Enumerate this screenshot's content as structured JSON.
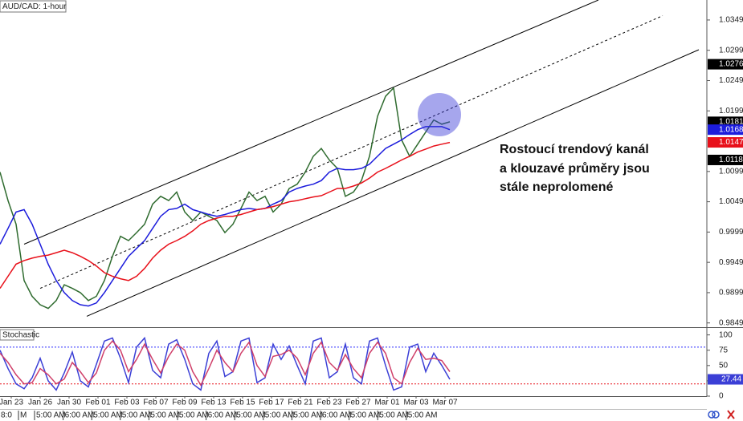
{
  "chart_data": [
    {
      "type": "line",
      "title": "AUD/CAD: 1-hour",
      "annotation": [
        "Rostoucí trendový kanál",
        "a klouzavé průměry jsou",
        "stále neprolomené"
      ],
      "x": [
        0,
        1,
        2,
        3,
        4,
        5,
        6,
        7,
        8,
        9,
        10,
        11,
        12,
        13,
        14,
        15,
        16,
        17,
        18,
        19,
        20,
        21,
        22,
        23,
        24,
        25,
        26,
        27,
        28,
        29,
        30,
        31,
        32,
        33,
        34,
        35,
        36,
        37,
        38,
        39,
        40,
        41,
        42,
        43,
        44,
        45,
        46,
        47,
        48,
        49,
        50,
        51,
        52,
        53,
        54,
        55,
        56
      ],
      "series": [
        {
          "color": "#2f6b2f",
          "values": [
            1.0098,
            1.0051,
            1.0012,
            0.9919,
            0.9893,
            0.9879,
            0.9873,
            0.9886,
            0.9912,
            0.9906,
            0.9899,
            0.9886,
            0.9893,
            0.9919,
            0.9959,
            0.9992,
            0.9985,
            0.9998,
            1.0012,
            1.0045,
            1.0058,
            1.0051,
            1.0065,
            1.0032,
            1.0018,
            1.0032,
            1.0025,
            1.0018,
            0.9998,
            1.0012,
            1.0038,
            1.0065,
            1.0051,
            1.0058,
            1.0032,
            1.0045,
            1.0071,
            1.0078,
            1.0098,
            1.0124,
            1.0137,
            1.0118,
            1.0104,
            1.0058,
            1.0065,
            1.0084,
            1.0124,
            1.019,
            1.0223,
            1.0237,
            1.0151,
            1.0124,
            1.0144,
            1.0164,
            1.0184,
            1.0177,
            1.0181
          ]
        },
        {
          "color": "#1c1cdc",
          "values": [
            0.9979,
            1.0005,
            1.0032,
            1.0036,
            1.0012,
            0.9979,
            0.9946,
            0.9919,
            0.9899,
            0.9886,
            0.9879,
            0.9877,
            0.9882,
            0.9899,
            0.9919,
            0.9939,
            0.9959,
            0.9972,
            0.9985,
            1.0005,
            1.0025,
            1.0036,
            1.0038,
            1.0045,
            1.0036,
            1.0032,
            1.0028,
            1.0025,
            1.0028,
            1.0032,
            1.0036,
            1.0038,
            1.0036,
            1.0038,
            1.0045,
            1.0051,
            1.0065,
            1.0071,
            1.0075,
            1.0078,
            1.0084,
            1.0098,
            1.0104,
            1.0102,
            1.0102,
            1.0104,
            1.0111,
            1.0124,
            1.0137,
            1.0144,
            1.0151,
            1.016,
            1.0168,
            1.0173,
            1.0173,
            1.0173,
            1.0168
          ]
        },
        {
          "color": "#e8101a",
          "values": [
            0.9906,
            0.9926,
            0.9946,
            0.9952,
            0.9956,
            0.9959,
            0.9961,
            0.9965,
            0.9969,
            0.9965,
            0.9959,
            0.9952,
            0.9943,
            0.9932,
            0.9926,
            0.9922,
            0.9919,
            0.9926,
            0.9939,
            0.9956,
            0.9969,
            0.9979,
            0.9985,
            0.9992,
            1.0001,
            1.0012,
            1.0018,
            1.0022,
            1.0025,
            1.0025,
            1.0028,
            1.0032,
            1.0036,
            1.0038,
            1.0041,
            1.0045,
            1.0049,
            1.0051,
            1.0054,
            1.0057,
            1.0059,
            1.0065,
            1.0071,
            1.0071,
            1.0075,
            1.008,
            1.0088,
            1.0098,
            1.0104,
            1.0111,
            1.0118,
            1.0124,
            1.0131,
            1.0136,
            1.0141,
            1.0144,
            1.0147
          ]
        }
      ],
      "trendlines": [
        {
          "x": [
            3,
            74.5
          ],
          "values": [
            0.9979,
            1.0382
          ],
          "color": "#000000"
        },
        {
          "x": [
            10.8,
            87
          ],
          "values": [
            0.986,
            1.03
          ],
          "color": "#000000"
        },
        {
          "x": [
            5,
            82.5
          ],
          "values": [
            0.9906,
            1.0356
          ],
          "color": "#000000",
          "dashed": true
        }
      ],
      "xlim": [
        0,
        88
      ],
      "ylim": [
        0.9842,
        1.0382
      ],
      "yticks": [
        0.9849,
        0.9899,
        0.9949,
        0.9999,
        1.0049,
        1.0099,
        1.0199,
        1.0249,
        1.0299,
        1.0349
      ],
      "price_labels": [
        {
          "value": 1.0276,
          "color": "#000000"
        },
        {
          "value": 1.0181,
          "color": "#000000"
        },
        {
          "value": 1.0168,
          "color": "#1c1cdc"
        },
        {
          "value": 1.0147,
          "color": "#e8101a"
        },
        {
          "value": 1.0118,
          "color": "#000000"
        }
      ]
    },
    {
      "type": "line",
      "title": "Stochastic",
      "x": [
        0,
        1,
        2,
        3,
        4,
        5,
        6,
        7,
        8,
        9,
        10,
        11,
        12,
        13,
        14,
        15,
        16,
        17,
        18,
        19,
        20,
        21,
        22,
        23,
        24,
        25,
        26,
        27,
        28,
        29,
        30,
        31,
        32,
        33,
        34,
        35,
        36,
        37,
        38,
        39,
        40,
        41,
        42,
        43,
        44,
        45,
        46,
        47,
        48,
        49,
        50,
        51,
        52,
        53,
        54,
        55,
        56
      ],
      "series": [
        {
          "color": "#3b3fd6",
          "values": [
            75,
            45,
            20,
            12,
            30,
            62,
            25,
            10,
            38,
            72,
            25,
            15,
            52,
            90,
            95,
            62,
            22,
            80,
            95,
            42,
            30,
            85,
            92,
            60,
            20,
            10,
            70,
            90,
            32,
            40,
            90,
            95,
            22,
            30,
            85,
            60,
            82,
            50,
            20,
            90,
            95,
            30,
            40,
            85,
            30,
            20,
            90,
            95,
            50,
            10,
            15,
            80,
            85,
            40,
            70,
            50,
            27.44
          ]
        },
        {
          "color": "#d0406a",
          "values": [
            70,
            55,
            35,
            20,
            22,
            45,
            35,
            20,
            28,
            55,
            40,
            22,
            38,
            75,
            90,
            75,
            40,
            60,
            85,
            60,
            38,
            65,
            85,
            75,
            40,
            18,
            45,
            75,
            55,
            40,
            70,
            88,
            50,
            32,
            65,
            68,
            75,
            62,
            35,
            70,
            88,
            55,
            42,
            68,
            45,
            30,
            70,
            88,
            70,
            30,
            20,
            55,
            78,
            60,
            62,
            58,
            40
          ]
        }
      ],
      "levels": [
        {
          "value": 80,
          "color": "#2a2aff"
        },
        {
          "value": 20,
          "color": "#e8101a"
        }
      ],
      "xlim": [
        0,
        88
      ],
      "ylim": [
        0,
        110
      ],
      "yticks": [
        0,
        25,
        50,
        75,
        100
      ],
      "xticks": [
        {
          "value": 1.4,
          "label": "Jan 23"
        },
        {
          "value": 5.0,
          "label": "Jan 26"
        },
        {
          "value": 8.6,
          "label": "Jan 30"
        },
        {
          "value": 12.2,
          "label": "Feb 01"
        },
        {
          "value": 15.8,
          "label": "Feb 03"
        },
        {
          "value": 19.4,
          "label": "Feb 07"
        },
        {
          "value": 23.0,
          "label": "Feb 09"
        },
        {
          "value": 26.6,
          "label": "Feb 13"
        },
        {
          "value": 30.2,
          "label": "Feb 15"
        },
        {
          "value": 33.8,
          "label": "Feb 17"
        },
        {
          "value": 37.4,
          "label": "Feb 21"
        },
        {
          "value": 41.0,
          "label": "Feb 23"
        },
        {
          "value": 44.6,
          "label": "Feb 27"
        },
        {
          "value": 48.2,
          "label": "Mar 01"
        },
        {
          "value": 51.8,
          "label": "Mar 03"
        },
        {
          "value": 55.4,
          "label": "Mar 07"
        }
      ],
      "time_labels": [
        "8:0",
        "M",
        "5:00 AM",
        "6:00 AM",
        "5:00 AM",
        "5:00 AM",
        "5:00 AM",
        "5:00 AM",
        "6:00 AM",
        "5:00 AM",
        "5:00 AM",
        "5:00 AM",
        "6:00 AM",
        "5:00 AM",
        "5:00 AM",
        "5:00 AM"
      ]
    }
  ]
}
